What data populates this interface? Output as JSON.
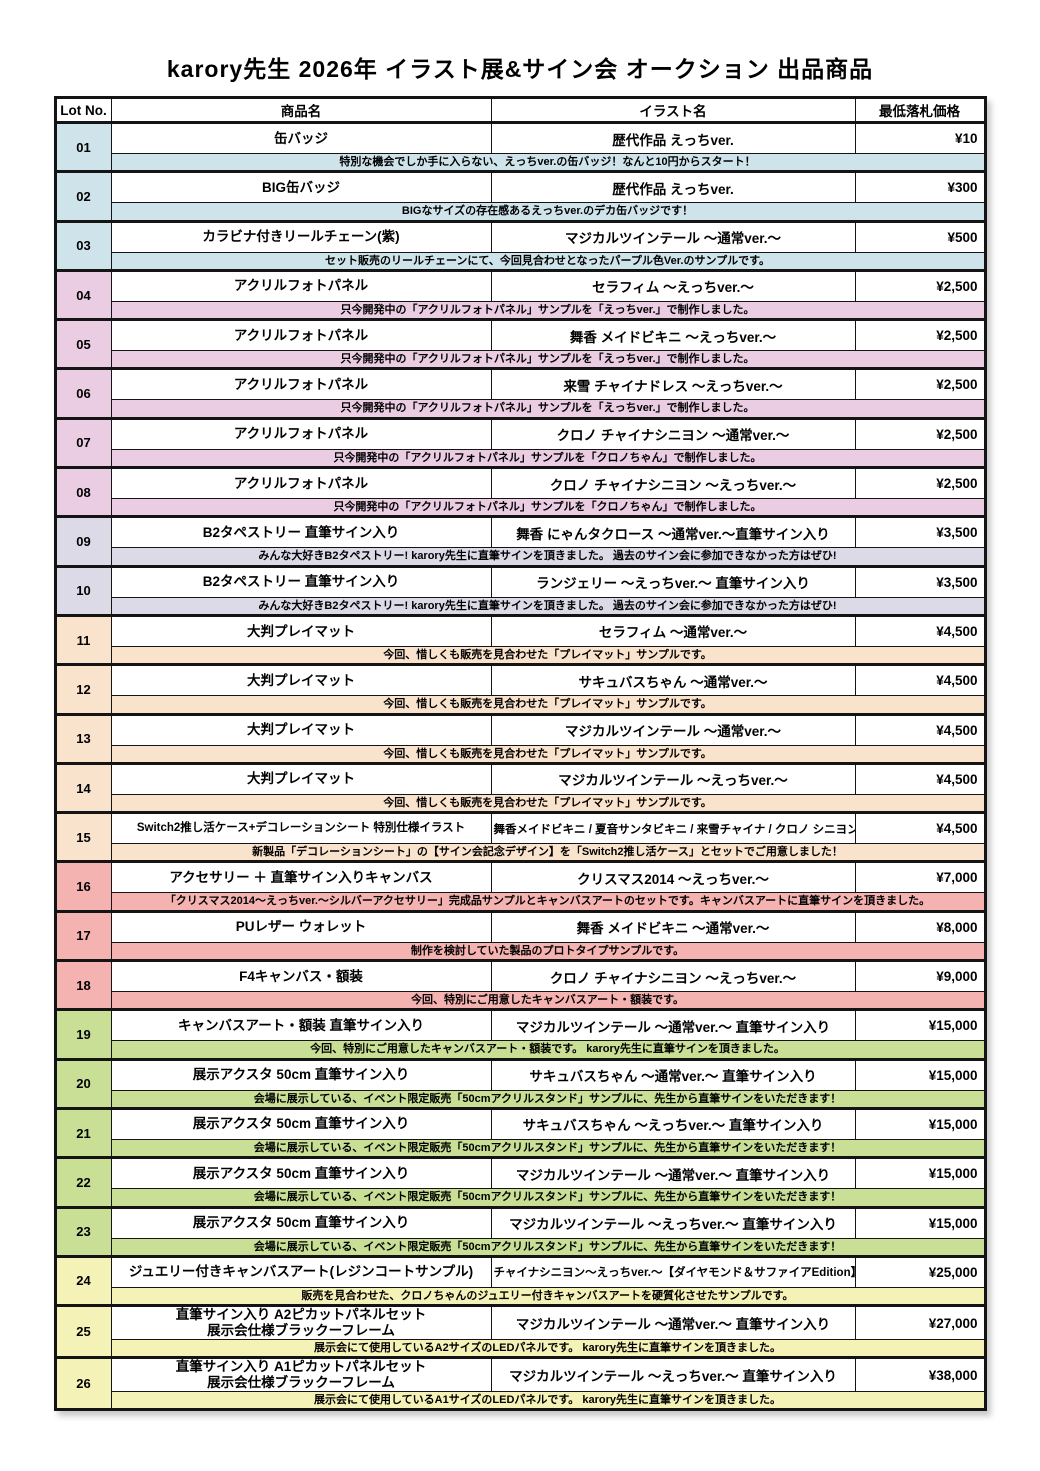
{
  "title": "karory先生 2026年 イラスト展&サイン会 オークション 出品商品",
  "colors": {
    "blue": "#cfe4ea",
    "pink": "#eacde2",
    "lavender": "#dbdae6",
    "peach": "#fae3cc",
    "salmon": "#f4b2b0",
    "green": "#c9df95",
    "yellow": "#f5f2b8"
  },
  "table": {
    "headers": {
      "lot": "Lot No.",
      "product": "商品名",
      "illustration": "イラスト名",
      "price": "最低落札価格"
    },
    "rows": [
      {
        "lot": "01",
        "product": "缶バッジ",
        "illustration": "歴代作品 えっちver.",
        "price": "¥10",
        "note": "特別な機会でしか手に入らない、えっちver.の缶バッジ！なんと10円からスタート！",
        "color": "blue"
      },
      {
        "lot": "02",
        "product": "BIG缶バッジ",
        "illustration": "歴代作品 えっちver.",
        "price": "¥300",
        "note": "BIGなサイズの存在感あるえっちver.のデカ缶バッジです！",
        "color": "blue"
      },
      {
        "lot": "03",
        "product": "カラビナ付きリールチェーン(紫)",
        "illustration": "マジカルツインテール ～通常ver.～",
        "price": "¥500",
        "note": "セット販売のリールチェーンにて、今回見合わせとなったパープル色Ver.のサンプルです。",
        "color": "blue"
      },
      {
        "lot": "04",
        "product": "アクリルフォトパネル",
        "illustration": "セラフィム ～えっちver.～",
        "price": "¥2,500",
        "note": "只今開発中の「アクリルフォトパネル」サンプルを「えっちver.」で制作しました。",
        "color": "pink"
      },
      {
        "lot": "05",
        "product": "アクリルフォトパネル",
        "illustration": "舞香 メイドビキニ ～えっちver.～",
        "price": "¥2,500",
        "note": "只今開発中の「アクリルフォトパネル」サンプルを「えっちver.」で制作しました。",
        "color": "pink"
      },
      {
        "lot": "06",
        "product": "アクリルフォトパネル",
        "illustration": "来雪 チャイナドレス ～えっちver.～",
        "price": "¥2,500",
        "note": "只今開発中の「アクリルフォトパネル」サンプルを「えっちver.」で制作しました。",
        "color": "pink"
      },
      {
        "lot": "07",
        "product": "アクリルフォトパネル",
        "illustration": "クロノ チャイナシニヨン ～通常ver.～",
        "price": "¥2,500",
        "note": "只今開発中の「アクリルフォトパネル」サンプルを「クロノちゃん」で制作しました。",
        "color": "pink"
      },
      {
        "lot": "08",
        "product": "アクリルフォトパネル",
        "illustration": "クロノ チャイナシニヨン ～えっちver.～",
        "price": "¥2,500",
        "note": "只今開発中の「アクリルフォトパネル」サンプルを「クロノちゃん」で制作しました。",
        "color": "pink"
      },
      {
        "lot": "09",
        "product": "B2タペストリー 直筆サイン入り",
        "illustration": "舞香 にゃんタクロース ～通常ver.～直筆サイン入り",
        "price": "¥3,500",
        "note": "みんな大好きB2タペストリー! karory先生に直筆サインを頂きました。 過去のサイン会に参加できなかった方はぜひ!",
        "color": "lavender"
      },
      {
        "lot": "10",
        "product": "B2タペストリー 直筆サイン入り",
        "illustration": "ランジェリー ～えっちver.～ 直筆サイン入り",
        "price": "¥3,500",
        "note": "みんな大好きB2タペストリー! karory先生に直筆サインを頂きました。 過去のサイン会に参加できなかった方はぜひ!",
        "color": "lavender"
      },
      {
        "lot": "11",
        "product": "大判プレイマット",
        "illustration": "セラフィム ～通常ver.～",
        "price": "¥4,500",
        "note": "今回、惜しくも販売を見合わせた「プレイマット」サンプルです。",
        "color": "peach"
      },
      {
        "lot": "12",
        "product": "大判プレイマット",
        "illustration": "サキュバスちゃん ～通常ver.～",
        "price": "¥4,500",
        "note": "今回、惜しくも販売を見合わせた「プレイマット」サンプルです。",
        "color": "peach"
      },
      {
        "lot": "13",
        "product": "大判プレイマット",
        "illustration": "マジカルツインテール ～通常ver.～",
        "price": "¥4,500",
        "note": "今回、惜しくも販売を見合わせた「プレイマット」サンプルです。",
        "color": "peach"
      },
      {
        "lot": "14",
        "product": "大判プレイマット",
        "illustration": "マジカルツインテール ～えっちver.～",
        "price": "¥4,500",
        "note": "今回、惜しくも販売を見合わせた「プレイマット」サンプルです。",
        "color": "peach"
      },
      {
        "lot": "15",
        "product": "Switch2推し活ケース+デコレーションシート 特別仕様イラスト",
        "illustration": "舞香メイドビキニ / 夏音サンタビキニ / 来雪チャイナ / クロノ シニヨン",
        "price": "¥4,500",
        "note": "新製品「デコレーションシート」の【サイン会記念デザイン】を「Switch2推し活ケース」とセットでご用意しました！",
        "color": "peach"
      },
      {
        "lot": "16",
        "product": "アクセサリー ＋ 直筆サイン入りキャンバス",
        "illustration": "クリスマス2014 ～えっちver.～",
        "price": "¥7,000",
        "note": "「クリスマス2014～えっちver.～シルバーアクセサリー」完成品サンプルとキャンバスアートのセットです。キャンバスアートに直筆サインを頂きました。",
        "color": "salmon"
      },
      {
        "lot": "17",
        "product": "PUレザー ウォレット",
        "illustration": "舞香 メイドビキニ ～通常ver.～",
        "price": "¥8,000",
        "note": "制作を検討していた製品のプロトタイプサンプルです。",
        "color": "salmon"
      },
      {
        "lot": "18",
        "product": "F4キャンバス・額装",
        "illustration": "クロノ チャイナシニヨン ～えっちver.～",
        "price": "¥9,000",
        "note": "今回、特別にご用意したキャンバスアート・額装です。",
        "color": "salmon"
      },
      {
        "lot": "19",
        "product": "キャンバスアート・額装 直筆サイン入り",
        "illustration": "マジカルツインテール ～通常ver.～ 直筆サイン入り",
        "price": "¥15,000",
        "note": "今回、特別にご用意したキャンバスアート・額装です。 karory先生に直筆サインを頂きました。",
        "color": "green"
      },
      {
        "lot": "20",
        "product": "展示アクスタ 50cm 直筆サイン入り",
        "illustration": "サキュバスちゃん ～通常ver.～ 直筆サイン入り",
        "price": "¥15,000",
        "note": "会場に展示している、イベント限定販売「50cmアクリルスタンド」サンプルに、先生から直筆サインをいただきます！",
        "color": "green"
      },
      {
        "lot": "21",
        "product": "展示アクスタ 50cm 直筆サイン入り",
        "illustration": "サキュバスちゃん ～えっちver.～ 直筆サイン入り",
        "price": "¥15,000",
        "note": "会場に展示している、イベント限定販売「50cmアクリルスタンド」サンプルに、先生から直筆サインをいただきます！",
        "color": "green"
      },
      {
        "lot": "22",
        "product": "展示アクスタ 50cm 直筆サイン入り",
        "illustration": "マジカルツインテール ～通常ver.～ 直筆サイン入り",
        "price": "¥15,000",
        "note": "会場に展示している、イベント限定販売「50cmアクリルスタンド」サンプルに、先生から直筆サインをいただきます！",
        "color": "green"
      },
      {
        "lot": "23",
        "product": "展示アクスタ 50cm 直筆サイン入り",
        "illustration": "マジカルツインテール ～えっちver.～ 直筆サイン入り",
        "price": "¥15,000",
        "note": "会場に展示している、イベント限定販売「50cmアクリルスタンド」サンプルに、先生から直筆サインをいただきます！",
        "color": "green"
      },
      {
        "lot": "24",
        "product": "ジュエリー付きキャンバスアート(レジンコートサンプル)",
        "illustration": "チャイナシニヨン～えっちver.～【ダイヤモンド＆サファイアEdition】",
        "price": "¥25,000",
        "note": "販売を見合わせた、クロノちゃんのジュエリー付きキャンバスアートを硬質化させたサンプルです。",
        "color": "yellow"
      },
      {
        "lot": "25",
        "product": "直筆サイン入り A2ピカットパネルセット\n展示会仕様ブラックーフレーム",
        "illustration": "マジカルツインテール ～通常ver.～ 直筆サイン入り",
        "price": "¥27,000",
        "note": "展示会にて使用しているA2サイズのLEDパネルです。 karory先生に直筆サインを頂きました。",
        "color": "yellow"
      },
      {
        "lot": "26",
        "product": "直筆サイン入り A1ピカットパネルセット\n展示会仕様ブラックーフレーム",
        "illustration": "マジカルツインテール ～えっちver.～ 直筆サイン入り",
        "price": "¥38,000",
        "note": "展示会にて使用しているA1サイズのLEDパネルです。 karory先生に直筆サインを頂きました。",
        "color": "yellow"
      }
    ]
  }
}
